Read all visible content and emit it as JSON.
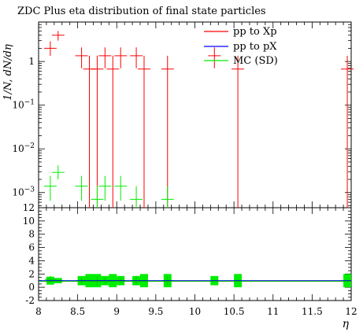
{
  "chart_data": {
    "type": "scatter",
    "title": "ZDC Plus eta distribution of final state particles",
    "xlabel": "η",
    "ylabel": "1/N, dN/dη",
    "xlim": [
      8,
      12
    ],
    "ylim": [
      0.00045,
      8
    ],
    "yscale": "log",
    "ratio_ylim": [
      -2,
      12
    ],
    "x_ticks": [
      "8",
      "8.5",
      "9",
      "9.5",
      "10",
      "10.5",
      "11",
      "11.5",
      "12"
    ],
    "ratio_y_ticks": [
      "-2",
      "0",
      "2",
      "4",
      "6",
      "8",
      "10",
      "12"
    ],
    "legend_position": "top-right",
    "series": [
      {
        "name": "pp to Xp",
        "color": "#ff0000",
        "points": [
          {
            "x": 8.15,
            "y": 2.0,
            "lo": 1.35,
            "hi": 2.9
          },
          {
            "x": 8.25,
            "y": 4.0,
            "lo": 3.0,
            "hi": 5.0
          },
          {
            "x": 8.55,
            "y": 1.35,
            "lo": 0.7,
            "hi": 2.1
          },
          {
            "x": 8.65,
            "y": 0.67,
            "lo": 0.00045,
            "hi": 1.35
          },
          {
            "x": 8.75,
            "y": 0.67,
            "lo": 0.00045,
            "hi": 1.35
          },
          {
            "x": 8.85,
            "y": 1.35,
            "lo": 0.7,
            "hi": 2.1
          },
          {
            "x": 8.95,
            "y": 0.67,
            "lo": 0.00045,
            "hi": 1.35
          },
          {
            "x": 9.05,
            "y": 1.35,
            "lo": 0.7,
            "hi": 2.1
          },
          {
            "x": 9.25,
            "y": 1.35,
            "lo": 0.7,
            "hi": 2.1
          },
          {
            "x": 9.35,
            "y": 0.67,
            "lo": 0.00045,
            "hi": 1.35
          },
          {
            "x": 9.65,
            "y": 0.67,
            "lo": 0.00045,
            "hi": 1.35
          },
          {
            "x": 10.25,
            "y": 1.35,
            "lo": 0.7,
            "hi": 2.1
          },
          {
            "x": 10.55,
            "y": 0.67,
            "lo": 0.00045,
            "hi": 1.35
          },
          {
            "x": 11.95,
            "y": 0.67,
            "lo": 0.00045,
            "hi": 1.35
          }
        ]
      },
      {
        "name": "pp to pX",
        "color": "#0000ff",
        "points": []
      },
      {
        "name": "MC (SD)",
        "color": "#00ee00",
        "points": [
          {
            "x": 8.15,
            "y": 0.0014,
            "lo": 0.00065,
            "hi": 0.0024
          },
          {
            "x": 8.25,
            "y": 0.0029,
            "lo": 0.002,
            "hi": 0.0042
          },
          {
            "x": 8.55,
            "y": 0.0014,
            "lo": 0.00065,
            "hi": 0.0024
          },
          {
            "x": 8.75,
            "y": 0.0007,
            "lo": 0.00045,
            "hi": 0.0014
          },
          {
            "x": 8.85,
            "y": 0.0014,
            "lo": 0.00065,
            "hi": 0.0024
          },
          {
            "x": 9.05,
            "y": 0.0014,
            "lo": 0.00065,
            "hi": 0.0024
          },
          {
            "x": 9.25,
            "y": 0.0007,
            "lo": 0.00045,
            "hi": 0.0014
          },
          {
            "x": 9.65,
            "y": 0.0007,
            "lo": 0.00045,
            "hi": 0.0014
          }
        ]
      }
    ],
    "ratio_reference": 1,
    "ratio_bands": [
      {
        "x0": 8.1,
        "x1": 8.2,
        "lo": 0.4,
        "hi": 1.6
      },
      {
        "x0": 8.2,
        "x1": 8.3,
        "lo": 0.6,
        "hi": 1.4
      },
      {
        "x0": 8.5,
        "x1": 8.6,
        "lo": 0.3,
        "hi": 1.7
      },
      {
        "x0": 8.6,
        "x1": 8.7,
        "lo": 0.0,
        "hi": 2.0
      },
      {
        "x0": 8.7,
        "x1": 8.8,
        "lo": 0.0,
        "hi": 2.0
      },
      {
        "x0": 8.8,
        "x1": 8.9,
        "lo": 0.3,
        "hi": 1.7
      },
      {
        "x0": 8.9,
        "x1": 9.0,
        "lo": 0.0,
        "hi": 2.0
      },
      {
        "x0": 9.0,
        "x1": 9.1,
        "lo": 0.3,
        "hi": 1.7
      },
      {
        "x0": 9.2,
        "x1": 9.3,
        "lo": 0.3,
        "hi": 1.7
      },
      {
        "x0": 9.3,
        "x1": 9.4,
        "lo": 0.0,
        "hi": 2.0
      },
      {
        "x0": 9.6,
        "x1": 9.7,
        "lo": 0.0,
        "hi": 2.0
      },
      {
        "x0": 10.2,
        "x1": 10.3,
        "lo": 0.3,
        "hi": 1.7
      },
      {
        "x0": 10.5,
        "x1": 10.6,
        "lo": 0.0,
        "hi": 2.0
      },
      {
        "x0": 11.9,
        "x1": 12.0,
        "lo": 0.0,
        "hi": 2.0
      }
    ],
    "ratio_markers": [
      {
        "x": 8.15,
        "y": 1.2,
        "lo": 0.7,
        "hi": 1.7
      },
      {
        "x": 8.25,
        "y": 1.0,
        "lo": 0.7,
        "hi": 1.3
      },
      {
        "x": 8.55,
        "y": 1.0,
        "lo": 0.5,
        "hi": 1.5
      },
      {
        "x": 8.75,
        "y": 1.0,
        "lo": 0.3,
        "hi": 1.7
      },
      {
        "x": 8.85,
        "y": 1.0,
        "lo": 0.5,
        "hi": 1.5
      },
      {
        "x": 9.05,
        "y": 1.0,
        "lo": 0.5,
        "hi": 1.5
      },
      {
        "x": 9.25,
        "y": 1.0,
        "lo": 0.3,
        "hi": 1.7
      },
      {
        "x": 9.65,
        "y": 1.0,
        "lo": 0.3,
        "hi": 1.7
      }
    ]
  }
}
